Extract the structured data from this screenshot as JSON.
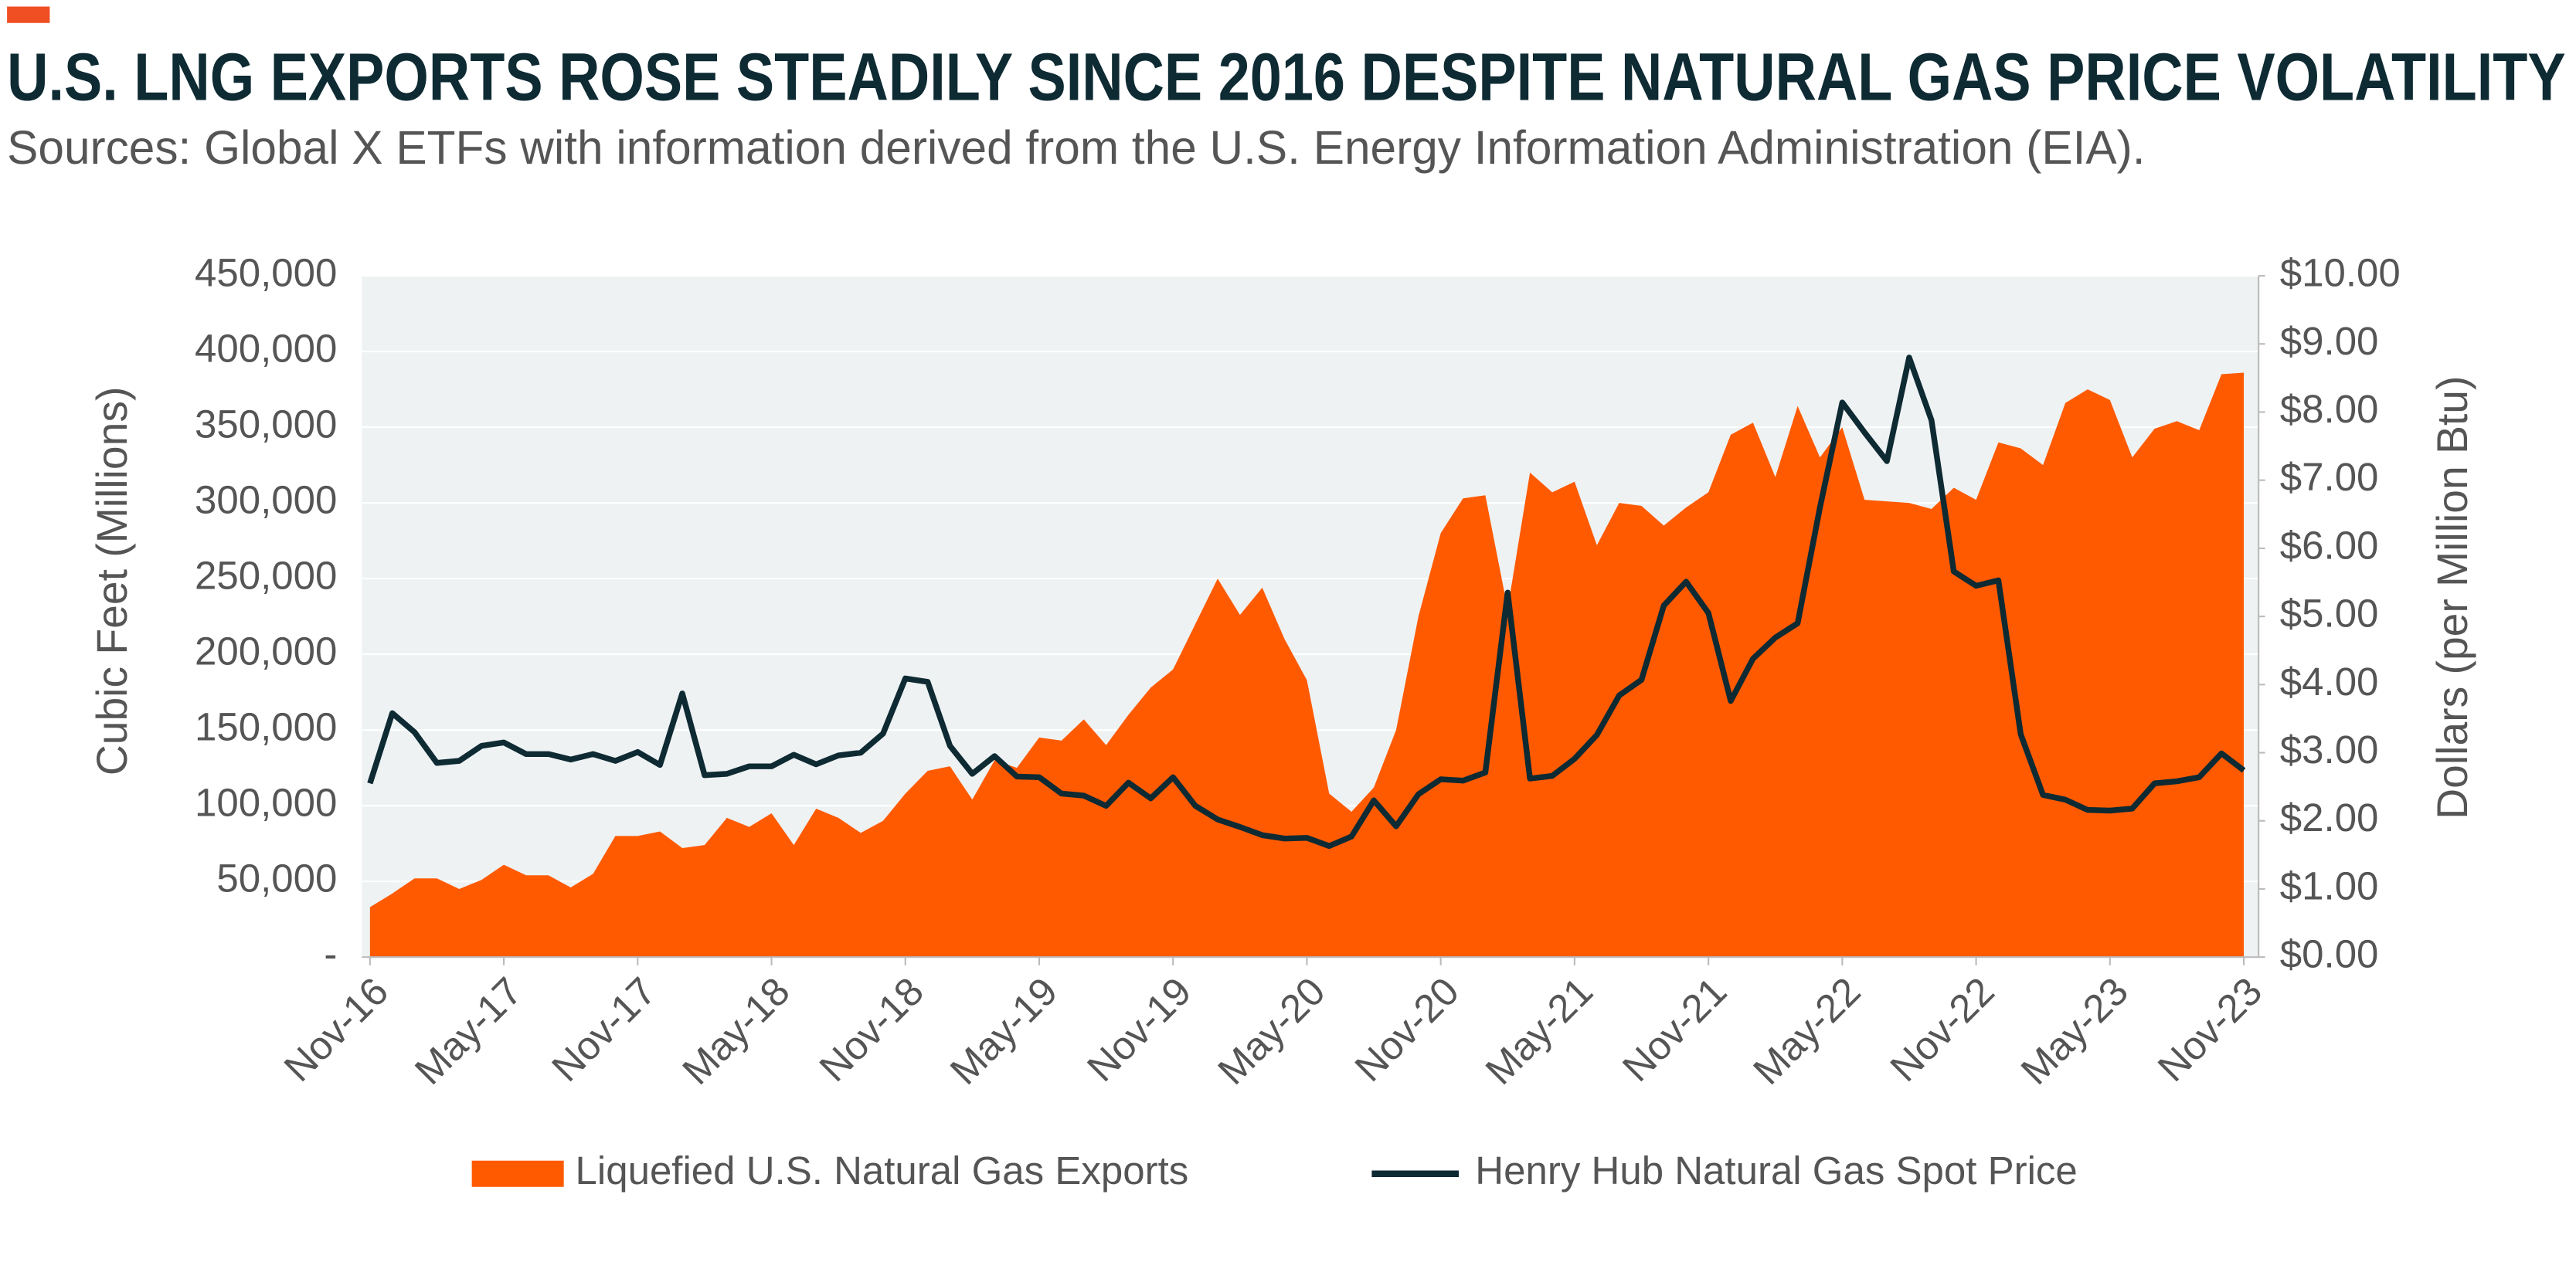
{
  "chart_data": {
    "type": "area",
    "title": "U.S. LNG EXPORTS ROSE STEADILY SINCE 2016 DESPITE NATURAL GAS PRICE VOLATILITY",
    "subtitle": "Sources: Global X ETFs with information derived from the U.S. Energy Information Administration (EIA).",
    "y_label": "Cubic Feet (Millions)",
    "y2_label": "Dollars (per Million Btu)",
    "categories": [
      "Nov-16",
      null,
      null,
      null,
      null,
      null,
      "May-17",
      null,
      null,
      null,
      null,
      null,
      "Nov-17",
      null,
      null,
      null,
      null,
      null,
      "May-18",
      null,
      null,
      null,
      null,
      null,
      "Nov-18",
      null,
      null,
      null,
      null,
      null,
      "May-19",
      null,
      null,
      null,
      null,
      null,
      "Nov-19",
      null,
      null,
      null,
      null,
      null,
      "May-20",
      null,
      null,
      null,
      null,
      null,
      "Nov-20",
      null,
      null,
      null,
      null,
      null,
      "May-21",
      null,
      null,
      null,
      null,
      null,
      "Nov-21",
      null,
      null,
      null,
      null,
      null,
      "May-22",
      null,
      null,
      null,
      null,
      null,
      "Nov-22",
      null,
      null,
      null,
      null,
      null,
      "May-23",
      null,
      null,
      null,
      null,
      null,
      "Nov-23"
    ],
    "series": [
      {
        "name": "Liquefied U.S. Natural Gas Exports",
        "type": "area",
        "color": "#ff5a00",
        "axis": "y",
        "values": [
          33000,
          42000,
          52000,
          52000,
          45000,
          51000,
          61000,
          54000,
          54000,
          46000,
          55000,
          80000,
          80000,
          83000,
          72000,
          74000,
          92000,
          86000,
          95000,
          74000,
          98000,
          92000,
          82000,
          90000,
          108000,
          123000,
          126000,
          104000,
          130000,
          125000,
          145000,
          143000,
          157000,
          140000,
          160000,
          178000,
          190000,
          220000,
          250000,
          226000,
          244000,
          210000,
          183000,
          108000,
          96000,
          112000,
          150000,
          225000,
          280000,
          303000,
          305000,
          230000,
          320000,
          307000,
          314000,
          272000,
          300000,
          298000,
          285000,
          297000,
          307000,
          345000,
          353000,
          317000,
          364000,
          330000,
          350000,
          302000,
          301000,
          300000,
          296000,
          310000,
          302000,
          340000,
          336000,
          325000,
          366000,
          375000,
          368000,
          330000,
          349000,
          354000,
          348000,
          385000,
          386000
        ]
      },
      {
        "name": "Henry Hub Natural Gas Spot Price",
        "type": "line",
        "color": "#0e2a33",
        "axis": "y2",
        "values": [
          2.55,
          3.58,
          3.3,
          2.85,
          2.88,
          3.1,
          3.15,
          2.98,
          2.98,
          2.9,
          2.98,
          2.88,
          3.01,
          2.82,
          3.87,
          2.67,
          2.69,
          2.8,
          2.8,
          2.97,
          2.83,
          2.96,
          3.0,
          3.28,
          4.09,
          4.04,
          3.1,
          2.69,
          2.95,
          2.65,
          2.64,
          2.4,
          2.37,
          2.22,
          2.56,
          2.33,
          2.64,
          2.22,
          2.02,
          1.91,
          1.79,
          1.74,
          1.75,
          1.63,
          1.77,
          2.3,
          1.92,
          2.39,
          2.61,
          2.59,
          2.71,
          5.35,
          2.62,
          2.66,
          2.91,
          3.26,
          3.84,
          4.07,
          5.16,
          5.51,
          5.05,
          3.76,
          4.38,
          4.69,
          4.9,
          6.6,
          8.14,
          7.7,
          7.28,
          8.8,
          7.88,
          5.66,
          5.45,
          5.53,
          3.27,
          2.38,
          2.31,
          2.16,
          2.15,
          2.18,
          2.55,
          2.58,
          2.64,
          2.99,
          2.74
        ]
      }
    ],
    "ylim": [
      0,
      450000
    ],
    "yticks": [
      {
        "value": 0,
        "label": "-"
      },
      {
        "value": 50000,
        "label": "50,000"
      },
      {
        "value": 100000,
        "label": "100,000"
      },
      {
        "value": 150000,
        "label": "150,000"
      },
      {
        "value": 200000,
        "label": "200,000"
      },
      {
        "value": 250000,
        "label": "250,000"
      },
      {
        "value": 300000,
        "label": "300,000"
      },
      {
        "value": 350000,
        "label": "350,000"
      },
      {
        "value": 400000,
        "label": "400,000"
      },
      {
        "value": 450000,
        "label": "450,000"
      }
    ],
    "y2lim": [
      0,
      10
    ],
    "y2ticks": [
      {
        "value": 0,
        "label": "$0.00"
      },
      {
        "value": 1,
        "label": "$1.00"
      },
      {
        "value": 2,
        "label": "$2.00"
      },
      {
        "value": 3,
        "label": "$3.00"
      },
      {
        "value": 4,
        "label": "$4.00"
      },
      {
        "value": 5,
        "label": "$5.00"
      },
      {
        "value": 6,
        "label": "$6.00"
      },
      {
        "value": 7,
        "label": "$7.00"
      },
      {
        "value": 8,
        "label": "$8.00"
      },
      {
        "value": 9,
        "label": "$9.00"
      },
      {
        "value": 10,
        "label": "$10.00"
      }
    ],
    "grid": true,
    "legend": "bottom"
  }
}
